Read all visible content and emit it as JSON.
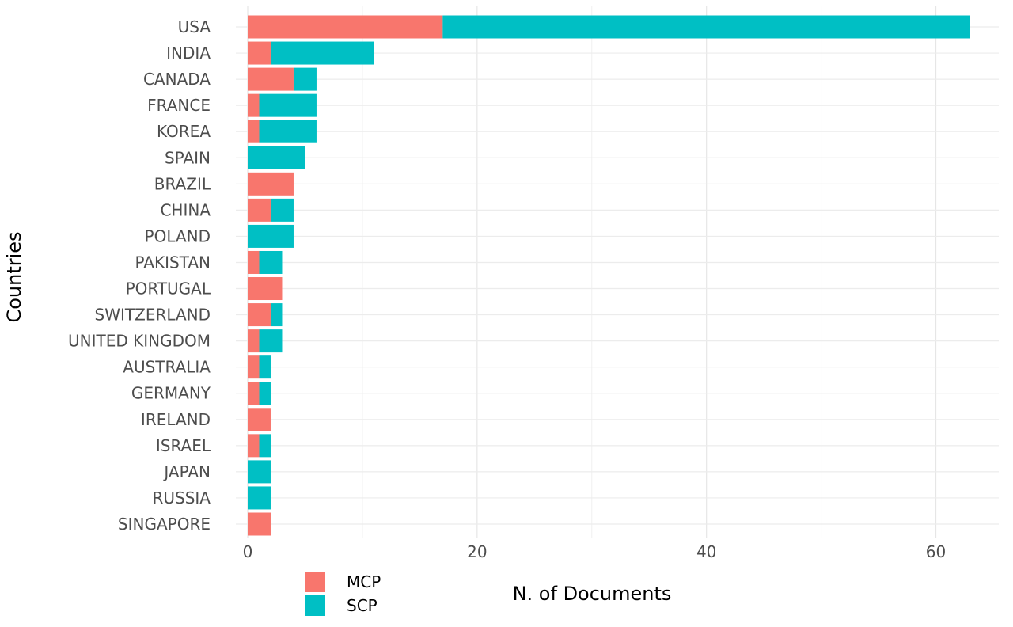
{
  "chart_data": {
    "type": "bar",
    "orientation": "horizontal",
    "stacked": true,
    "title": "",
    "xlabel": "N. of Documents",
    "ylabel": "Countries",
    "xlim": [
      0,
      63
    ],
    "x_ticks": [
      0,
      20,
      40,
      60
    ],
    "grid": true,
    "legend_position": "bottom-left",
    "categories": [
      "USA",
      "INDIA",
      "CANADA",
      "FRANCE",
      "KOREA",
      "SPAIN",
      "BRAZIL",
      "CHINA",
      "POLAND",
      "PAKISTAN",
      "PORTUGAL",
      "SWITZERLAND",
      "UNITED KINGDOM",
      "AUSTRALIA",
      "GERMANY",
      "IRELAND",
      "ISRAEL",
      "JAPAN",
      "RUSSIA",
      "SINGAPORE"
    ],
    "series": [
      {
        "name": "MCP",
        "color": "#F8766D",
        "values": [
          17,
          2,
          4,
          1,
          1,
          0,
          4,
          2,
          0,
          1,
          3,
          2,
          1,
          1,
          1,
          2,
          1,
          0,
          0,
          2
        ]
      },
      {
        "name": "SCP",
        "color": "#00BFC4",
        "values": [
          46,
          9,
          2,
          5,
          5,
          5,
          0,
          2,
          4,
          2,
          0,
          1,
          2,
          1,
          1,
          0,
          1,
          2,
          2,
          0
        ]
      }
    ]
  }
}
